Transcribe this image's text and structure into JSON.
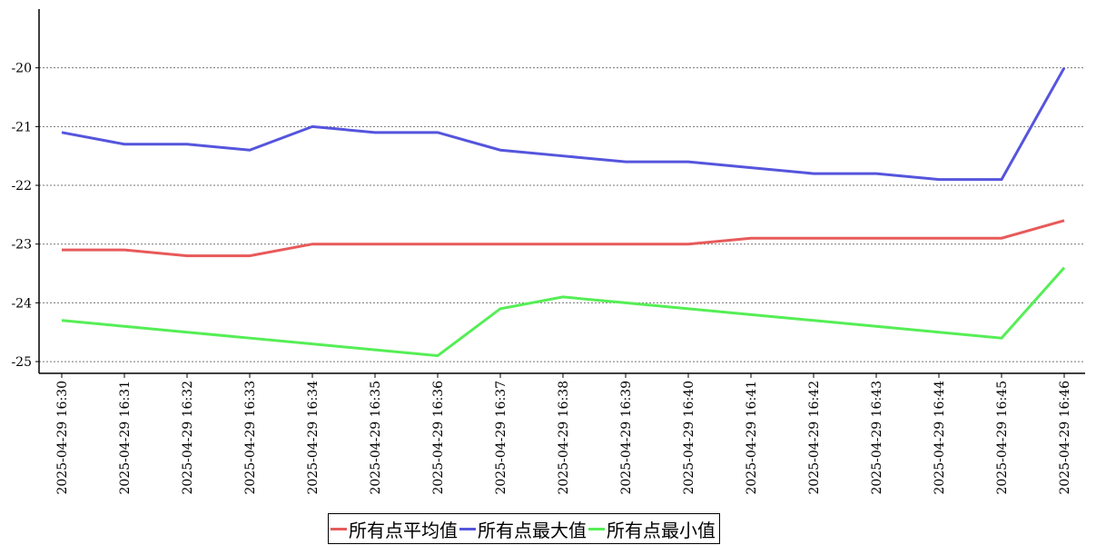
{
  "chart_data": {
    "type": "line",
    "categories": [
      "2025-04-29 16:30",
      "2025-04-29 16:31",
      "2025-04-29 16:32",
      "2025-04-29 16:33",
      "2025-04-29 16:34",
      "2025-04-29 16:35",
      "2025-04-29 16:36",
      "2025-04-29 16:37",
      "2025-04-29 16:38",
      "2025-04-29 16:39",
      "2025-04-29 16:40",
      "2025-04-29 16:41",
      "2025-04-29 16:42",
      "2025-04-29 16:43",
      "2025-04-29 16:44",
      "2025-04-29 16:45",
      "2025-04-29 16:46"
    ],
    "series": [
      {
        "name": "所有点平均值",
        "color": "#e85a5a",
        "values": [
          -23.1,
          -23.1,
          -23.2,
          -23.2,
          -23,
          -23,
          -23,
          -23,
          -23,
          -23,
          -23,
          -22.9,
          -22.9,
          -22.9,
          -22.9,
          -22.9,
          -22.6
        ]
      },
      {
        "name": "所有点最大值",
        "color": "#5555dd",
        "values": [
          -21.1,
          -21.3,
          -21.3,
          -21.4,
          -21,
          -21.1,
          -21.1,
          -21.4,
          -21.5,
          -21.6,
          -21.6,
          -21.7,
          -21.8,
          -21.8,
          -21.9,
          -21.9,
          -20
        ]
      },
      {
        "name": "所有点最小值",
        "color": "#55ee55",
        "values": [
          -24.3,
          -24.4,
          -24.5,
          -24.6,
          -24.7,
          -24.8,
          -24.9,
          -24.1,
          -23.9,
          -24,
          -24.1,
          -24.2,
          -24.3,
          -24.4,
          -24.5,
          -24.6,
          -23.4
        ]
      }
    ],
    "ylim": [
      -25.2,
      -19
    ],
    "yticks": [
      -25,
      -24,
      -23,
      -22,
      -21,
      -20
    ],
    "grid": true
  }
}
